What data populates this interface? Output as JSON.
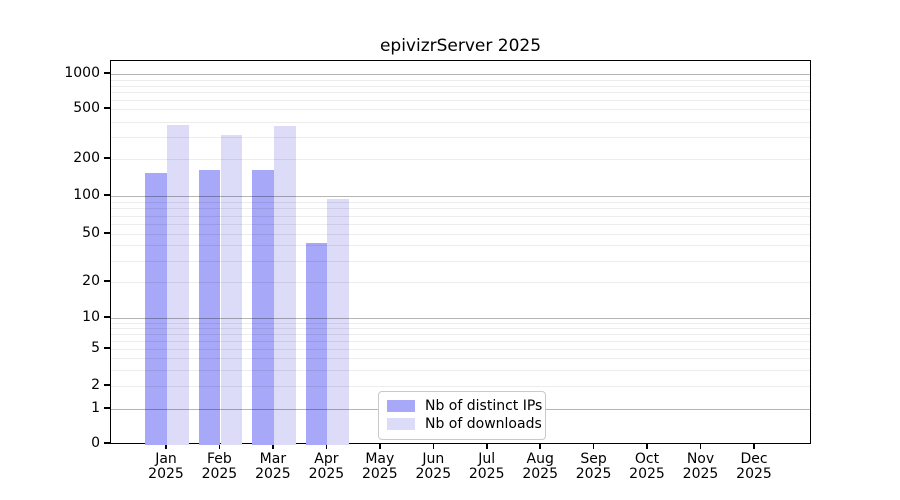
{
  "title": "epivizrServer 2025",
  "chart_data": {
    "type": "bar",
    "title": "epivizrServer 2025",
    "categories": [
      "Jan 2025",
      "Feb 2025",
      "Mar 2025",
      "Apr 2025",
      "May 2025",
      "Jun 2025",
      "Jul 2025",
      "Aug 2025",
      "Sep 2025",
      "Oct 2025",
      "Nov 2025",
      "Dec 2025"
    ],
    "x_tick_labels_line1": [
      "Jan",
      "Feb",
      "Mar",
      "Apr",
      "May",
      "Jun",
      "Jul",
      "Aug",
      "Sep",
      "Oct",
      "Nov",
      "Dec"
    ],
    "x_tick_labels_line2": "2025",
    "series": [
      {
        "name": "Nb of distinct IPs",
        "color": "#a8a8f8",
        "values": [
          155,
          164,
          164,
          42,
          0,
          0,
          0,
          0,
          0,
          0,
          0,
          0
        ]
      },
      {
        "name": "Nb of downloads",
        "color": "#dcdcf9",
        "values": [
          375,
          315,
          370,
          95,
          0,
          0,
          0,
          0,
          0,
          0,
          0,
          0
        ]
      }
    ],
    "yscale": "log-like",
    "yticks": [
      0,
      1,
      2,
      5,
      10,
      20,
      50,
      100,
      200,
      500,
      1000
    ],
    "ylim": [
      0,
      1000
    ],
    "grid": true,
    "gridline_minor_values": [
      2,
      3,
      4,
      5,
      6,
      7,
      8,
      9,
      20,
      30,
      40,
      50,
      60,
      70,
      80,
      90,
      200,
      300,
      400,
      500,
      600,
      700,
      800,
      900
    ],
    "gridline_major_values": [
      1,
      10,
      100,
      1000
    ],
    "legend_position": "inside-bottom-center",
    "colors": {
      "distinct_ips": "#a8a8f8",
      "downloads": "#dcdcf9",
      "gridline_minor": "#ececec",
      "gridline_major": "#b5b5b5",
      "axis": "#000000",
      "background": "#ffffff"
    }
  }
}
